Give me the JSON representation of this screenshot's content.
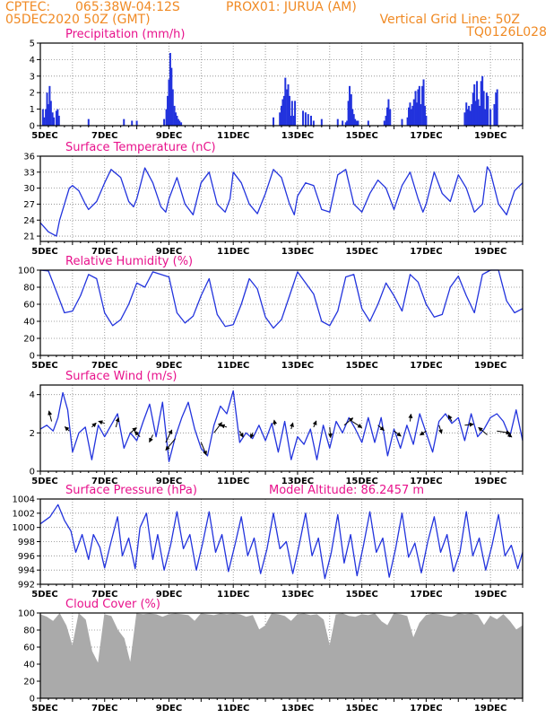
{
  "header": {
    "source": "CPTEC:",
    "location": "065:38W-04:12S",
    "station": "PROX01: JURUA (AM)",
    "datetime": "05DEC2020 50Z (GMT)",
    "grid_note": "Vertical Grid Line: 50Z",
    "model": "TQ0126L028"
  },
  "colors": {
    "header": "#f08a24",
    "title": "#e8128c",
    "line": "#2233dd",
    "cloud": "#aaaaaa",
    "arrow": "#000000"
  },
  "chart_data": [
    {
      "id": "precip",
      "type": "bar",
      "title": "Precipitation (mm/h)",
      "ylim": [
        0,
        5
      ],
      "yticks": [
        0,
        1,
        2,
        3,
        4,
        5
      ],
      "xticks": [
        "5DEC",
        "7DEC",
        "9DEC",
        "11DEC",
        "13DEC",
        "15DEC",
        "17DEC",
        "19DEC"
      ],
      "xlim": [
        0,
        15
      ],
      "x": [
        0.08,
        0.12,
        0.17,
        0.21,
        0.25,
        0.29,
        0.33,
        0.38,
        0.42,
        0.5,
        0.54,
        0.58,
        1.5,
        2.6,
        2.85,
        3.0,
        3.85,
        3.92,
        3.96,
        4.0,
        4.04,
        4.08,
        4.12,
        4.17,
        4.21,
        4.25,
        4.29,
        4.33,
        4.38,
        7.25,
        7.45,
        7.5,
        7.54,
        7.58,
        7.62,
        7.67,
        7.71,
        7.75,
        7.79,
        7.83,
        7.88,
        7.92,
        8.17,
        8.25,
        8.33,
        8.42,
        8.5,
        8.75,
        9.25,
        9.4,
        9.5,
        9.54,
        9.58,
        9.62,
        9.67,
        9.71,
        9.75,
        9.79,
        9.83,
        9.88,
        10.2,
        10.7,
        10.75,
        10.79,
        10.83,
        10.88,
        11.25,
        11.42,
        11.46,
        11.5,
        11.54,
        11.58,
        11.62,
        11.67,
        11.71,
        11.75,
        11.79,
        11.83,
        11.88,
        11.92,
        11.96,
        12.0,
        13.2,
        13.25,
        13.29,
        13.33,
        13.38,
        13.42,
        13.46,
        13.5,
        13.54,
        13.58,
        13.62,
        13.67,
        13.71,
        13.75,
        13.79,
        13.83,
        13.88,
        13.92,
        14.0,
        14.12,
        14.17,
        14.21
      ],
      "values": [
        1.0,
        0.5,
        1.0,
        2.0,
        1.3,
        2.4,
        1.5,
        0.8,
        0.5,
        0.9,
        1.0,
        0.6,
        0.4,
        0.4,
        0.3,
        0.3,
        0.4,
        1.0,
        1.8,
        2.8,
        4.4,
        3.5,
        2.2,
        1.2,
        0.8,
        0.6,
        0.4,
        0.3,
        0.2,
        0.5,
        0.8,
        1.2,
        1.6,
        1.8,
        2.9,
        2.2,
        2.5,
        1.8,
        0.6,
        1.5,
        0.6,
        1.5,
        0.9,
        0.8,
        0.7,
        0.6,
        0.3,
        0.4,
        0.4,
        0.3,
        0.2,
        0.3,
        1.5,
        2.4,
        1.9,
        1.0,
        0.7,
        0.4,
        0.3,
        0.3,
        0.3,
        0.3,
        0.6,
        1.1,
        1.6,
        1.0,
        0.4,
        0.5,
        1.1,
        1.4,
        1.0,
        1.2,
        1.6,
        2.1,
        1.4,
        2.2,
        2.4,
        1.3,
        2.4,
        2.8,
        1.2,
        0.6,
        0.8,
        1.4,
        1.0,
        1.2,
        0.9,
        1.3,
        2.0,
        2.5,
        1.5,
        2.7,
        1.6,
        1.2,
        2.7,
        3.0,
        2.1,
        1.0,
        2.0,
        1.8,
        1.0,
        1.3,
        2.0,
        2.2
      ]
    },
    {
      "id": "temp",
      "type": "line",
      "title": "Surface Temperature (nC)",
      "ylim": [
        20,
        36
      ],
      "yticks": [
        21,
        24,
        27,
        30,
        33,
        36
      ],
      "xticks": [
        "5DEC",
        "7DEC",
        "9DEC",
        "11DEC",
        "13DEC",
        "15DEC",
        "17DEC",
        "19DEC"
      ],
      "xlim": [
        0,
        15
      ],
      "x": [
        0,
        0.25,
        0.5,
        0.6,
        0.75,
        0.9,
        1.0,
        1.2,
        1.4,
        1.5,
        1.75,
        2.0,
        2.2,
        2.5,
        2.75,
        2.9,
        3.0,
        3.25,
        3.5,
        3.75,
        3.9,
        4.0,
        4.25,
        4.5,
        4.75,
        5.0,
        5.25,
        5.5,
        5.75,
        5.9,
        6.0,
        6.25,
        6.5,
        6.75,
        7.0,
        7.25,
        7.5,
        7.75,
        7.9,
        8.0,
        8.25,
        8.5,
        8.75,
        9.0,
        9.25,
        9.5,
        9.75,
        10.0,
        10.25,
        10.5,
        10.75,
        11.0,
        11.25,
        11.5,
        11.75,
        11.9,
        12.0,
        12.25,
        12.5,
        12.75,
        13.0,
        13.25,
        13.5,
        13.75,
        13.9,
        14.0,
        14.25,
        14.5,
        14.75,
        15.0
      ],
      "values": [
        23.5,
        21.8,
        21.0,
        24.0,
        27.0,
        30.0,
        30.5,
        29.5,
        27.0,
        26.0,
        27.5,
        31.0,
        33.5,
        32.0,
        27.5,
        26.5,
        28.0,
        33.8,
        31.0,
        26.5,
        25.5,
        28.0,
        32.0,
        27.0,
        25.0,
        31.0,
        33.0,
        27.0,
        25.5,
        28.0,
        33.0,
        31.0,
        27.0,
        25.2,
        29.0,
        33.5,
        32.0,
        27.0,
        25.0,
        28.5,
        31.0,
        30.5,
        26.0,
        25.5,
        32.5,
        33.5,
        27.0,
        25.5,
        29.0,
        31.5,
        30.0,
        26.0,
        30.5,
        33.0,
        28.0,
        25.5,
        27.0,
        33.0,
        29.0,
        27.5,
        32.5,
        30.0,
        25.5,
        27.0,
        34.0,
        33.0,
        27.0,
        25.0,
        29.5,
        31.0
      ]
    },
    {
      "id": "rh",
      "type": "line",
      "title": "Relative Humidity (%)",
      "ylim": [
        0,
        100
      ],
      "yticks": [
        0,
        20,
        40,
        60,
        80,
        100
      ],
      "xticks": [
        "5DEC",
        "7DEC",
        "9DEC",
        "11DEC",
        "13DEC",
        "15DEC",
        "17DEC",
        "19DEC"
      ],
      "xlim": [
        0,
        15
      ],
      "x": [
        0,
        0.25,
        0.5,
        0.75,
        1.0,
        1.25,
        1.5,
        1.75,
        2.0,
        2.25,
        2.5,
        2.75,
        3.0,
        3.25,
        3.5,
        3.75,
        4.0,
        4.25,
        4.5,
        4.75,
        5.0,
        5.25,
        5.5,
        5.75,
        6.0,
        6.25,
        6.5,
        6.75,
        7.0,
        7.25,
        7.5,
        7.75,
        8.0,
        8.25,
        8.5,
        8.75,
        9.0,
        9.25,
        9.5,
        9.75,
        10.0,
        10.25,
        10.5,
        10.75,
        11.0,
        11.25,
        11.5,
        11.75,
        12.0,
        12.25,
        12.5,
        12.75,
        13.0,
        13.25,
        13.5,
        13.75,
        14.0,
        14.25,
        14.5,
        14.75,
        15.0
      ],
      "values": [
        100,
        99,
        75,
        50,
        52,
        70,
        95,
        90,
        50,
        35,
        42,
        60,
        85,
        80,
        98,
        95,
        92,
        50,
        38,
        46,
        70,
        90,
        48,
        34,
        36,
        60,
        90,
        78,
        45,
        32,
        42,
        70,
        98,
        85,
        72,
        40,
        35,
        52,
        92,
        95,
        55,
        40,
        60,
        85,
        70,
        52,
        95,
        86,
        60,
        45,
        48,
        80,
        93,
        70,
        50,
        95,
        100,
        100,
        64,
        50,
        55
      ]
    },
    {
      "id": "wind",
      "type": "line",
      "title": "Surface Wind (m/s)",
      "ylim": [
        0,
        4.5
      ],
      "yticks": [
        0,
        2,
        4
      ],
      "xticks": [
        "5DEC",
        "7DEC",
        "9DEC",
        "11DEC",
        "13DEC",
        "15DEC",
        "17DEC",
        "19DEC"
      ],
      "xlim": [
        0,
        15
      ],
      "x": [
        0,
        0.2,
        0.4,
        0.55,
        0.7,
        0.85,
        1.0,
        1.2,
        1.4,
        1.6,
        1.8,
        2.0,
        2.2,
        2.4,
        2.6,
        2.8,
        3.0,
        3.2,
        3.4,
        3.6,
        3.8,
        4.0,
        4.2,
        4.4,
        4.6,
        4.8,
        5.0,
        5.2,
        5.4,
        5.6,
        5.8,
        6.0,
        6.2,
        6.4,
        6.6,
        6.8,
        7.0,
        7.2,
        7.4,
        7.6,
        7.8,
        8.0,
        8.2,
        8.4,
        8.6,
        8.8,
        9.0,
        9.2,
        9.4,
        9.6,
        9.8,
        10.0,
        10.2,
        10.4,
        10.6,
        10.8,
        11.0,
        11.2,
        11.4,
        11.6,
        11.8,
        12.0,
        12.2,
        12.4,
        12.6,
        12.8,
        13.0,
        13.2,
        13.4,
        13.6,
        13.8,
        14.0,
        14.2,
        14.4,
        14.6,
        14.8,
        15.0
      ],
      "values": [
        2.2,
        2.4,
        2.1,
        2.8,
        4.1,
        3.2,
        1.0,
        2.0,
        2.3,
        0.6,
        2.4,
        1.8,
        2.4,
        3.0,
        1.2,
        2.0,
        1.6,
        2.6,
        3.5,
        1.8,
        3.6,
        0.5,
        1.8,
        2.8,
        3.6,
        2.2,
        1.2,
        0.8,
        2.4,
        3.4,
        3.0,
        4.2,
        1.5,
        2.0,
        1.7,
        2.4,
        1.6,
        2.5,
        1.0,
        2.6,
        0.6,
        1.8,
        1.4,
        2.2,
        0.6,
        2.4,
        1.2,
        2.6,
        2.0,
        2.8,
        2.2,
        1.5,
        2.8,
        1.5,
        2.8,
        0.8,
        2.2,
        1.2,
        2.4,
        1.4,
        3.0,
        2.0,
        1.0,
        2.6,
        3.0,
        2.5,
        2.8,
        1.6,
        3.0,
        1.8,
        2.2,
        2.8,
        3.0,
        2.6,
        1.8,
        3.2,
        1.6
      ],
      "arrows": [
        {
          "x": 0.35,
          "y": 2.6,
          "dx": -0.15,
          "dy": 1.0
        },
        {
          "x": 0.9,
          "y": 2.1,
          "dx": -0.25,
          "dy": 0.4
        },
        {
          "x": 1.6,
          "y": 2.3,
          "dx": 0.25,
          "dy": 0.4
        },
        {
          "x": 2.0,
          "y": 2.5,
          "dx": -0.35,
          "dy": 0.2
        },
        {
          "x": 2.35,
          "y": 2.3,
          "dx": 0.15,
          "dy": 0.9
        },
        {
          "x": 2.8,
          "y": 2.0,
          "dx": 0.35,
          "dy": 0.5
        },
        {
          "x": 3.1,
          "y": 1.8,
          "dx": -0.3,
          "dy": 0.5
        },
        {
          "x": 3.5,
          "y": 1.9,
          "dx": -0.2,
          "dy": -0.7
        },
        {
          "x": 3.9,
          "y": 1.5,
          "dx": 0.35,
          "dy": 1.2
        },
        {
          "x": 4.2,
          "y": 1.7,
          "dx": -0.55,
          "dy": -1.1
        },
        {
          "x": 5.0,
          "y": 1.5,
          "dx": 0.3,
          "dy": -1.2
        },
        {
          "x": 5.4,
          "y": 2.0,
          "dx": 0.45,
          "dy": 1.0
        },
        {
          "x": 5.8,
          "y": 2.3,
          "dx": -0.35,
          "dy": 0.2
        },
        {
          "x": 6.2,
          "y": 2.1,
          "dx": 0.2,
          "dy": -0.6
        },
        {
          "x": 6.6,
          "y": 2.0,
          "dx": -0.1,
          "dy": -0.5
        },
        {
          "x": 7.3,
          "y": 2.4,
          "dx": -0.05,
          "dy": 0.5
        },
        {
          "x": 7.8,
          "y": 2.2,
          "dx": 0.1,
          "dy": 0.6
        },
        {
          "x": 8.5,
          "y": 2.3,
          "dx": 0.15,
          "dy": 0.6
        },
        {
          "x": 9.0,
          "y": 2.3,
          "dx": 0.05,
          "dy": -1.0
        },
        {
          "x": 9.45,
          "y": 2.4,
          "dx": 0.5,
          "dy": 0.7
        },
        {
          "x": 9.7,
          "y": 2.6,
          "dx": 0.55,
          "dy": -0.6
        },
        {
          "x": 10.5,
          "y": 2.4,
          "dx": 0.35,
          "dy": -0.5
        },
        {
          "x": 11.0,
          "y": 2.1,
          "dx": 0.4,
          "dy": -0.5
        },
        {
          "x": 11.5,
          "y": 2.6,
          "dx": 0.05,
          "dy": 0.7
        },
        {
          "x": 12.0,
          "y": 2.1,
          "dx": -0.35,
          "dy": -0.4
        },
        {
          "x": 12.4,
          "y": 2.4,
          "dx": 0.15,
          "dy": -0.8
        },
        {
          "x": 12.8,
          "y": 2.6,
          "dx": -0.2,
          "dy": 0.6
        },
        {
          "x": 13.2,
          "y": 2.4,
          "dx": 0.5,
          "dy": 0.1
        },
        {
          "x": 13.9,
          "y": 1.9,
          "dx": -0.5,
          "dy": 0.7
        },
        {
          "x": 14.2,
          "y": 2.1,
          "dx": 0.75,
          "dy": -0.2
        },
        {
          "x": 14.5,
          "y": 2.0,
          "dx": 0.3,
          "dy": -0.4
        }
      ]
    },
    {
      "id": "pres",
      "type": "line",
      "title": "Surface Pressure (hPa)",
      "annotation": "Model Altitude: 86.2457 m",
      "ylim": [
        992,
        1004
      ],
      "yticks": [
        992,
        994,
        996,
        998,
        1000,
        1002,
        1004
      ],
      "xticks": [
        "5DEC",
        "7DEC",
        "9DEC",
        "11DEC",
        "13DEC",
        "15DEC",
        "17DEC",
        "19DEC"
      ],
      "xlim": [
        0,
        15
      ],
      "x": [
        0,
        0.3,
        0.55,
        0.75,
        0.95,
        1.1,
        1.3,
        1.5,
        1.65,
        1.85,
        2.0,
        2.2,
        2.4,
        2.55,
        2.75,
        2.95,
        3.1,
        3.3,
        3.5,
        3.65,
        3.85,
        4.05,
        4.25,
        4.45,
        4.65,
        4.85,
        5.05,
        5.25,
        5.45,
        5.65,
        5.85,
        6.05,
        6.25,
        6.45,
        6.65,
        6.85,
        7.05,
        7.25,
        7.45,
        7.65,
        7.85,
        8.05,
        8.25,
        8.45,
        8.65,
        8.85,
        9.05,
        9.25,
        9.45,
        9.65,
        9.85,
        10.05,
        10.25,
        10.45,
        10.65,
        10.85,
        11.05,
        11.25,
        11.45,
        11.65,
        11.85,
        12.05,
        12.25,
        12.45,
        12.65,
        12.85,
        13.05,
        13.25,
        13.45,
        13.65,
        13.85,
        14.05,
        14.25,
        14.45,
        14.65,
        14.85,
        15.0
      ],
      "values": [
        1000.5,
        1001.5,
        1003.2,
        1001.0,
        999.5,
        996.5,
        999.0,
        995.5,
        999.0,
        997.2,
        994.3,
        998.0,
        1001.5,
        996.0,
        998.5,
        994.2,
        1000.0,
        1002.0,
        995.5,
        999.0,
        994.0,
        997.5,
        1002.2,
        997.0,
        999.0,
        994.0,
        997.8,
        1002.2,
        996.5,
        999.0,
        993.8,
        997.5,
        1001.5,
        996.0,
        998.5,
        993.5,
        997.0,
        1002.0,
        997.0,
        998.0,
        993.5,
        997.5,
        1002.0,
        996.0,
        998.5,
        992.8,
        996.5,
        1001.8,
        995.0,
        999.0,
        993.2,
        997.5,
        1002.2,
        996.5,
        998.5,
        993.0,
        997.0,
        1002.0,
        995.8,
        997.8,
        993.6,
        998.0,
        1001.5,
        996.5,
        999.0,
        993.8,
        996.5,
        1002.2,
        996.0,
        998.5,
        994.0,
        997.5,
        1001.8,
        996.0,
        997.5,
        994.2,
        996.5
      ]
    },
    {
      "id": "cloud",
      "type": "area",
      "title": "Cloud Cover (%)",
      "ylim": [
        0,
        100
      ],
      "yticks": [
        0,
        20,
        40,
        60,
        80,
        100
      ],
      "xticks": [
        "5DEC",
        "7DEC",
        "9DEC",
        "11DEC",
        "13DEC",
        "15DEC",
        "17DEC",
        "19DEC"
      ],
      "xlim": [
        0,
        15
      ],
      "x": [
        0,
        0.2,
        0.4,
        0.6,
        0.8,
        1.0,
        1.2,
        1.4,
        1.6,
        1.8,
        2.0,
        2.2,
        2.4,
        2.6,
        2.8,
        3.0,
        3.2,
        3.4,
        3.6,
        3.8,
        4.0,
        4.2,
        4.4,
        4.6,
        4.8,
        5.0,
        5.2,
        5.4,
        5.6,
        5.8,
        6.0,
        6.2,
        6.4,
        6.6,
        6.8,
        7.0,
        7.2,
        7.4,
        7.6,
        7.8,
        8.0,
        8.2,
        8.4,
        8.6,
        8.8,
        9.0,
        9.2,
        9.4,
        9.6,
        9.8,
        10.0,
        10.2,
        10.4,
        10.6,
        10.8,
        11.0,
        11.2,
        11.4,
        11.6,
        11.8,
        12.0,
        12.2,
        12.4,
        12.6,
        12.8,
        13.0,
        13.2,
        13.4,
        13.6,
        13.8,
        14.0,
        14.2,
        14.4,
        14.6,
        14.8,
        15.0
      ],
      "values": [
        98,
        95,
        90,
        99,
        85,
        60,
        99,
        92,
        55,
        40,
        98,
        96,
        80,
        70,
        40,
        99,
        98,
        99,
        98,
        95,
        98,
        99,
        98,
        97,
        90,
        99,
        98,
        97,
        99,
        98,
        99,
        98,
        95,
        97,
        80,
        85,
        99,
        98,
        96,
        90,
        98,
        99,
        97,
        98,
        92,
        60,
        98,
        99,
        96,
        95,
        98,
        97,
        99,
        90,
        85,
        99,
        98,
        96,
        70,
        88,
        97,
        99,
        98,
        96,
        95,
        99,
        98,
        99,
        97,
        85,
        96,
        92,
        98,
        90,
        80,
        85
      ]
    }
  ]
}
